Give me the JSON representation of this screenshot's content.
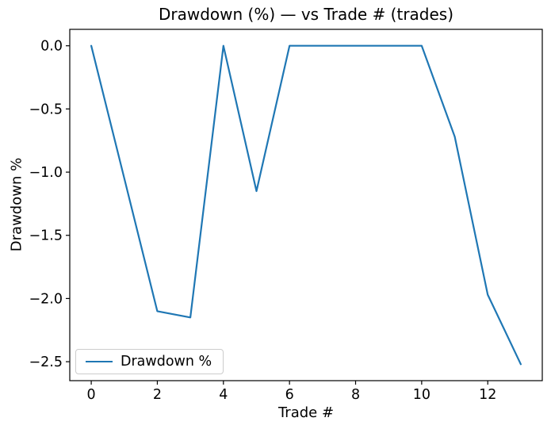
{
  "figure": {
    "title": "Drawdown (%) — vs Trade # (trades)",
    "xlabel": "Trade #",
    "ylabel": "Drawdown %",
    "legend": {
      "label": "Drawdown %",
      "position": "lower left"
    },
    "colors": {
      "line": "#1f77b4",
      "background": "#ffffff",
      "spine": "#000000",
      "legend_border": "#cccccc"
    }
  },
  "chart_data": {
    "type": "line",
    "title": "Drawdown (%) — vs Trade # (trades)",
    "xlabel": "Trade #",
    "ylabel": "Drawdown %",
    "grid": false,
    "legend_position": "lower left",
    "xlim": [
      -0.65,
      13.65
    ],
    "ylim": [
      -2.65,
      0.13
    ],
    "x_ticks": [
      0,
      2,
      4,
      6,
      8,
      10,
      12
    ],
    "x_tick_labels": [
      "0",
      "2",
      "4",
      "6",
      "8",
      "10",
      "12"
    ],
    "y_ticks": [
      0.0,
      -0.5,
      -1.0,
      -1.5,
      -2.0,
      -2.5
    ],
    "y_tick_labels": [
      "0.0",
      "−0.5",
      "−1.0",
      "−1.5",
      "−2.0",
      "−2.5"
    ],
    "series": [
      {
        "name": "Drawdown %",
        "color": "#1f77b4",
        "x": [
          0,
          1,
          2,
          3,
          4,
          5,
          6,
          7,
          8,
          9,
          10,
          11,
          12,
          13
        ],
        "y": [
          0.0,
          -1.05,
          -2.1,
          -2.15,
          0.0,
          -1.15,
          0.0,
          0.0,
          0.0,
          0.0,
          0.0,
          -0.72,
          -1.97,
          -2.52
        ]
      }
    ]
  }
}
